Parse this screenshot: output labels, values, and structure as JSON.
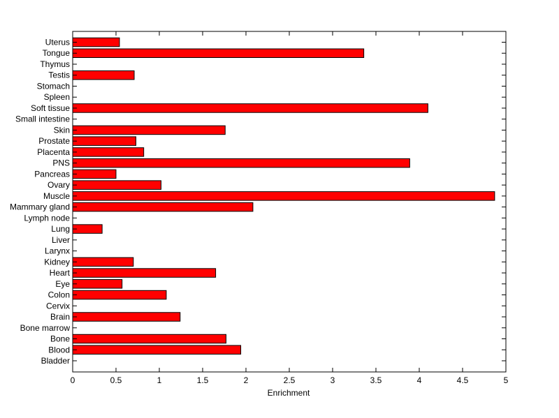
{
  "chart_data": {
    "type": "bar",
    "orientation": "horizontal",
    "title": "",
    "xlabel": "Enrichment",
    "ylabel": "",
    "xlim": [
      0,
      5
    ],
    "xticks": [
      "0",
      "0.5",
      "1",
      "1.5",
      "2",
      "2.5",
      "3",
      "3.5",
      "4",
      "4.5",
      "5"
    ],
    "grid": false,
    "bar_color": "#ff0000",
    "categories": [
      "Bladder",
      "Blood",
      "Bone",
      "Bone marrow",
      "Brain",
      "Cervix",
      "Colon",
      "Eye",
      "Heart",
      "Kidney",
      "Larynx",
      "Liver",
      "Lung",
      "Lymph node",
      "Mammary gland",
      "Muscle",
      "Ovary",
      "Pancreas",
      "PNS",
      "Placenta",
      "Prostate",
      "Skin",
      "Small intestine",
      "Soft tissue",
      "Spleen",
      "Stomach",
      "Testis",
      "Thymus",
      "Tongue",
      "Uterus"
    ],
    "values": [
      0,
      1.94,
      1.77,
      0,
      1.24,
      0,
      1.08,
      0.57,
      1.65,
      0.7,
      0,
      0,
      0.34,
      0,
      2.08,
      4.87,
      1.02,
      0.5,
      3.89,
      0.82,
      0.73,
      1.76,
      0,
      4.1,
      0,
      0,
      0.71,
      0,
      3.36,
      0.54
    ]
  }
}
